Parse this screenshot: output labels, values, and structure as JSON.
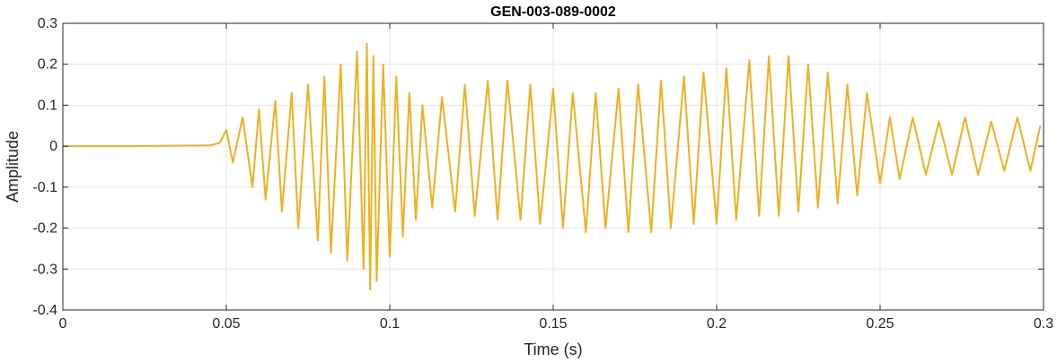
{
  "chart_data": {
    "type": "line",
    "title": "GEN-003-089-0002",
    "xlabel": "Time (s)",
    "ylabel": "Amplitude",
    "xlim": [
      0,
      0.3
    ],
    "ylim": [
      -0.4,
      0.3
    ],
    "xticks": [
      0,
      0.05,
      0.1,
      0.15,
      0.2,
      0.25,
      0.3
    ],
    "xtick_labels": [
      "0",
      "0.05",
      "0.1",
      "0.15",
      "0.2",
      "0.25",
      "0.3"
    ],
    "yticks": [
      -0.4,
      -0.3,
      -0.2,
      -0.1,
      0,
      0.1,
      0.2,
      0.3
    ],
    "ytick_labels": [
      "-0.4",
      "-0.3",
      "-0.2",
      "-0.1",
      "0",
      "0.1",
      "0.2",
      "0.3"
    ],
    "grid": true,
    "line_color": "#EDB120",
    "series": [
      {
        "x": [
          0,
          0.02,
          0.045,
          0.048,
          0.05,
          0.052,
          0.055,
          0.058,
          0.06,
          0.062,
          0.065,
          0.067,
          0.07,
          0.072,
          0.075,
          0.078,
          0.08,
          0.082,
          0.085,
          0.087,
          0.09,
          0.092,
          0.093,
          0.094,
          0.095,
          0.096,
          0.098,
          0.1,
          0.102,
          0.104,
          0.106,
          0.108,
          0.11,
          0.113,
          0.116,
          0.12,
          0.123,
          0.126,
          0.13,
          0.133,
          0.136,
          0.14,
          0.143,
          0.146,
          0.15,
          0.153,
          0.156,
          0.16,
          0.163,
          0.166,
          0.17,
          0.173,
          0.176,
          0.18,
          0.183,
          0.186,
          0.19,
          0.193,
          0.196,
          0.2,
          0.203,
          0.206,
          0.21,
          0.213,
          0.216,
          0.219,
          0.222,
          0.225,
          0.228,
          0.231,
          0.234,
          0.237,
          0.24,
          0.243,
          0.246,
          0.25,
          0.253,
          0.256,
          0.26,
          0.264,
          0.268,
          0.272,
          0.276,
          0.28,
          0.284,
          0.288,
          0.292,
          0.296,
          0.299
        ],
        "y": [
          0,
          0,
          0.002,
          0.008,
          0.04,
          -0.04,
          0.07,
          -0.1,
          0.09,
          -0.13,
          0.11,
          -0.16,
          0.13,
          -0.2,
          0.15,
          -0.23,
          0.17,
          -0.26,
          0.2,
          -0.28,
          0.23,
          -0.3,
          0.25,
          -0.35,
          0.22,
          -0.33,
          0.2,
          -0.27,
          0.17,
          -0.22,
          0.13,
          -0.18,
          0.1,
          -0.15,
          0.12,
          -0.16,
          0.15,
          -0.17,
          0.16,
          -0.18,
          0.16,
          -0.18,
          0.15,
          -0.19,
          0.14,
          -0.2,
          0.13,
          -0.21,
          0.13,
          -0.2,
          0.14,
          -0.21,
          0.15,
          -0.21,
          0.16,
          -0.2,
          0.17,
          -0.19,
          0.18,
          -0.19,
          0.19,
          -0.18,
          0.21,
          -0.17,
          0.22,
          -0.17,
          0.22,
          -0.16,
          0.2,
          -0.15,
          0.18,
          -0.14,
          0.15,
          -0.12,
          0.13,
          -0.09,
          0.07,
          -0.08,
          0.07,
          -0.07,
          0.06,
          -0.07,
          0.07,
          -0.07,
          0.06,
          -0.06,
          0.07,
          -0.06,
          0.05
        ]
      }
    ]
  }
}
